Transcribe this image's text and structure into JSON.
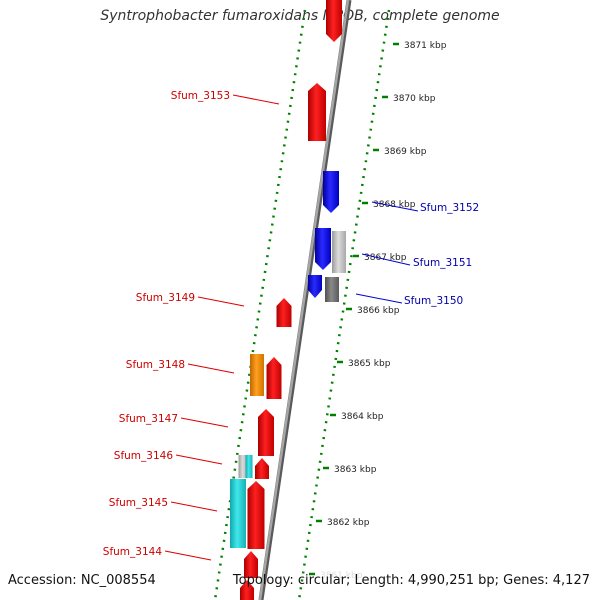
{
  "title": "Syntrophobacter fumaroxidans MPOB, complete genome",
  "footer": {
    "accession": "Accession: NC_008554",
    "topology": "Topology: circular; Length: 4,990,251 bp; Genes: 4,127"
  },
  "colors": {
    "forward_gene": "#ee0000",
    "reverse_gene": "#1010ee",
    "cyan_feature": "#20c8cc",
    "orange_feature": "#f08c00",
    "gray_feature": "#b4b4b4",
    "dark_gray_feature": "#707070",
    "backbone": "#888888",
    "dotted_track": "#008000",
    "label_forward": "#cc0000",
    "label_reverse": "#0000aa"
  },
  "scale": {
    "unit": "kbp",
    "ticks": [
      "3871 kbp",
      "3870 kbp",
      "3869 kbp",
      "3868 kbp",
      "3867 kbp",
      "3866 kbp",
      "3865 kbp",
      "3864 kbp",
      "3863 kbp",
      "3862 kbp",
      "3861 kbp"
    ]
  },
  "gene_labels": {
    "left": [
      "Sfum_3153",
      "Sfum_3149",
      "Sfum_3148",
      "Sfum_3147",
      "Sfum_3146",
      "Sfum_3145",
      "Sfum_3144"
    ],
    "right": [
      "Sfum_3152",
      "Sfum_3151",
      "Sfum_3150"
    ]
  }
}
